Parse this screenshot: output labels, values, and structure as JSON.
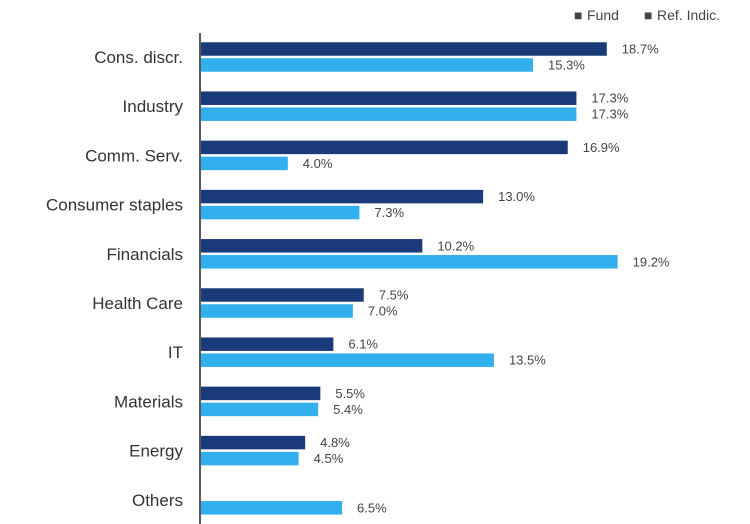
{
  "chart_data": {
    "type": "bar",
    "orientation": "horizontal",
    "categories": [
      "Cons. discr.",
      "Industry",
      "Comm. Serv.",
      "Consumer staples",
      "Financials",
      "Health Care",
      "IT",
      "Materials",
      "Energy",
      "Others"
    ],
    "series": [
      {
        "name": "Fund",
        "color": "#1b3a7a",
        "values": [
          18.7,
          17.3,
          16.9,
          13.0,
          10.2,
          7.5,
          6.1,
          5.5,
          4.8,
          null
        ],
        "labels": [
          "18.7%",
          "17.3%",
          "16.9%",
          "13.0%",
          "10.2%",
          "7.5%",
          "6.1%",
          "5.5%",
          "4.8%",
          ""
        ]
      },
      {
        "name": "Ref. Indic.",
        "color": "#32b0ee",
        "values": [
          15.3,
          17.3,
          4.0,
          7.3,
          19.2,
          7.0,
          13.5,
          5.4,
          4.5,
          6.5
        ],
        "labels": [
          "15.3%",
          "17.3%",
          "4.0%",
          "7.3%",
          "19.2%",
          "7.0%",
          "13.5%",
          "5.4%",
          "4.5%",
          "6.5%"
        ]
      }
    ],
    "title": "",
    "xlabel": "",
    "ylabel": "",
    "xlim": [
      0,
      20
    ],
    "grid": false,
    "legend_position": "top-right",
    "legend_markers": [
      "■",
      "■"
    ]
  }
}
